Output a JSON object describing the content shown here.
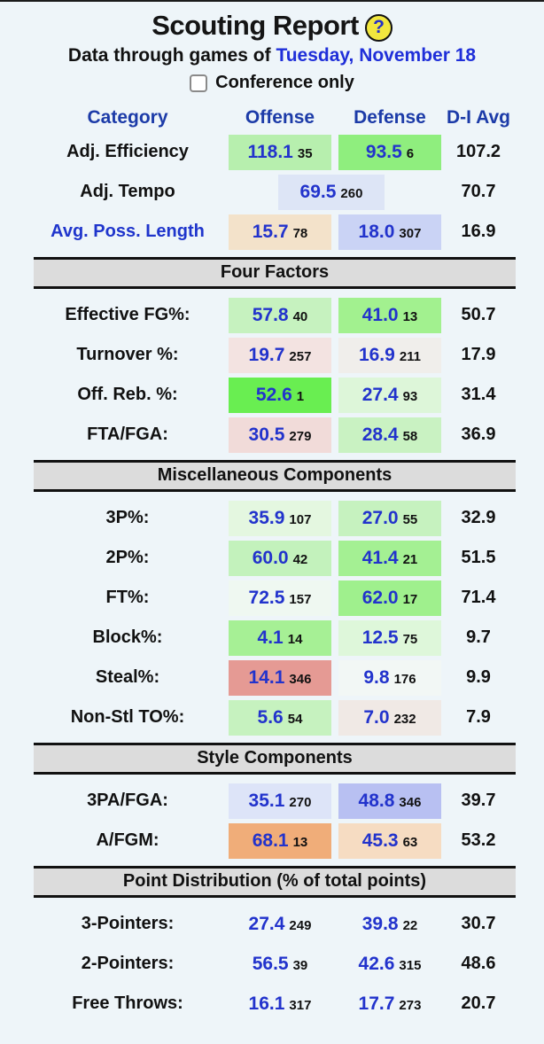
{
  "page": {
    "title": "Scouting Report",
    "help_glyph": "?",
    "subtitle_prefix": "Data through games of",
    "date": "Tuesday, November 18",
    "conference_label": "Conference only"
  },
  "columns": {
    "category": "Category",
    "offense": "Offense",
    "defense": "Defense",
    "avg": "D-I Avg"
  },
  "colors": {
    "page_bg": "#eef5f9",
    "header_blue": "#1c3ba8",
    "value_blue": "#2233cc",
    "date_blue": "#1f2fd9",
    "section_bar_bg": "#dcdcdc",
    "help_icon_bg": "#f2e73e"
  },
  "sections": [
    {
      "header": null,
      "rows": [
        {
          "label": "Adj. Efficiency",
          "link": false,
          "offense": {
            "value": "118.1",
            "rank": "35",
            "bg": "#b7efae"
          },
          "defense": {
            "value": "93.5",
            "rank": "6",
            "bg": "#8fee7e"
          },
          "avg": "107.2"
        },
        {
          "label": "Adj. Tempo",
          "link": false,
          "combined": {
            "value": "69.5",
            "rank": "260",
            "bg": "#dde5f6"
          },
          "avg": "70.7"
        },
        {
          "label": "Avg. Poss. Length",
          "link": true,
          "offense": {
            "value": "15.7",
            "rank": "78",
            "bg": "#f3e2ca"
          },
          "defense": {
            "value": "18.0",
            "rank": "307",
            "bg": "#cad3f5"
          },
          "avg": "16.9"
        }
      ]
    },
    {
      "header": "Four Factors",
      "rows": [
        {
          "label": "Effective FG%:",
          "link": false,
          "offense": {
            "value": "57.8",
            "rank": "40",
            "bg": "#c6f2bf"
          },
          "defense": {
            "value": "41.0",
            "rank": "13",
            "bg": "#a2f18f"
          },
          "avg": "50.7"
        },
        {
          "label": "Turnover %:",
          "link": false,
          "offense": {
            "value": "19.7",
            "rank": "257",
            "bg": "#f3e3e1"
          },
          "defense": {
            "value": "16.9",
            "rank": "211",
            "bg": "#f0eeeb"
          },
          "avg": "17.9"
        },
        {
          "label": "Off. Reb. %:",
          "link": false,
          "offense": {
            "value": "52.6",
            "rank": "1",
            "bg": "#69ee51"
          },
          "defense": {
            "value": "27.4",
            "rank": "93",
            "bg": "#ddf6d9"
          },
          "avg": "31.4"
        },
        {
          "label": "FTA/FGA:",
          "link": false,
          "offense": {
            "value": "30.5",
            "rank": "279",
            "bg": "#f1dbd9"
          },
          "defense": {
            "value": "28.4",
            "rank": "58",
            "bg": "#c9f2c2"
          },
          "avg": "36.9"
        }
      ]
    },
    {
      "header": "Miscellaneous Components",
      "rows": [
        {
          "label": "3P%:",
          "link": false,
          "offense": {
            "value": "35.9",
            "rank": "107",
            "bg": "#e4f7e0"
          },
          "defense": {
            "value": "27.0",
            "rank": "55",
            "bg": "#c6f2bf"
          },
          "avg": "32.9"
        },
        {
          "label": "2P%:",
          "link": false,
          "offense": {
            "value": "60.0",
            "rank": "42",
            "bg": "#c3f2bc"
          },
          "defense": {
            "value": "41.4",
            "rank": "21",
            "bg": "#a4f093"
          },
          "avg": "51.5"
        },
        {
          "label": "FT%:",
          "link": false,
          "offense": {
            "value": "72.5",
            "rank": "157",
            "bg": "#eff8f1"
          },
          "defense": {
            "value": "62.0",
            "rank": "17",
            "bg": "#9ff08d"
          },
          "avg": "71.4"
        },
        {
          "label": "Block%:",
          "link": false,
          "offense": {
            "value": "4.1",
            "rank": "14",
            "bg": "#a6f095"
          },
          "defense": {
            "value": "12.5",
            "rank": "75",
            "bg": "#def7da"
          },
          "avg": "9.7"
        },
        {
          "label": "Steal%:",
          "link": false,
          "offense": {
            "value": "14.1",
            "rank": "346",
            "bg": "#e59a94"
          },
          "defense": {
            "value": "9.8",
            "rank": "176",
            "bg": "#f2f7f5"
          },
          "avg": "9.9"
        },
        {
          "label": "Non-Stl TO%:",
          "link": false,
          "offense": {
            "value": "5.6",
            "rank": "54",
            "bg": "#c6f2bf"
          },
          "defense": {
            "value": "7.0",
            "rank": "232",
            "bg": "#f0e9e5"
          },
          "avg": "7.9"
        }
      ]
    },
    {
      "header": "Style Components",
      "rows": [
        {
          "label": "3PA/FGA:",
          "link": false,
          "offense": {
            "value": "35.1",
            "rank": "270",
            "bg": "#dde4f8"
          },
          "defense": {
            "value": "48.8",
            "rank": "346",
            "bg": "#b8c0f2"
          },
          "avg": "39.7"
        },
        {
          "label": "A/FGM:",
          "link": false,
          "offense": {
            "value": "68.1",
            "rank": "13",
            "bg": "#f0ad79"
          },
          "defense": {
            "value": "45.3",
            "rank": "63",
            "bg": "#f6dcc2"
          },
          "avg": "53.2"
        }
      ]
    },
    {
      "header": "Point Distribution (% of total points)",
      "rows": [
        {
          "label": "3-Pointers:",
          "link": false,
          "offense": {
            "value": "27.4",
            "rank": "249",
            "bg": null
          },
          "defense": {
            "value": "39.8",
            "rank": "22",
            "bg": null
          },
          "avg": "30.7"
        },
        {
          "label": "2-Pointers:",
          "link": false,
          "offense": {
            "value": "56.5",
            "rank": "39",
            "bg": null
          },
          "defense": {
            "value": "42.6",
            "rank": "315",
            "bg": null
          },
          "avg": "48.6"
        },
        {
          "label": "Free Throws:",
          "link": false,
          "offense": {
            "value": "16.1",
            "rank": "317",
            "bg": null
          },
          "defense": {
            "value": "17.7",
            "rank": "273",
            "bg": null
          },
          "avg": "20.7"
        }
      ]
    }
  ]
}
